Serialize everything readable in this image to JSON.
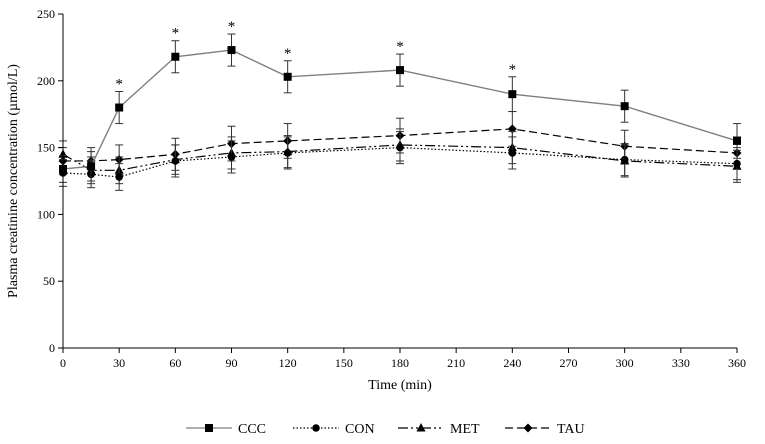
{
  "chart_data": {
    "type": "line",
    "title": "",
    "xlabel": "Time (min)",
    "ylabel": "Plasma creatinine concentration (µmol/L)",
    "xlim": [
      0,
      360
    ],
    "ylim": [
      0,
      250
    ],
    "x_ticks": [
      "0",
      "30",
      "60",
      "90",
      "120",
      "150",
      "180",
      "210",
      "240",
      "270",
      "300",
      "330",
      "360"
    ],
    "y_ticks": [
      "0",
      "50",
      "100",
      "150",
      "200",
      "250"
    ],
    "grid": false,
    "legend_position": "bottom",
    "significance_marker": "*",
    "series": [
      {
        "name": "CCC",
        "marker": "square",
        "line_style": "solid",
        "x": [
          0,
          15,
          30,
          60,
          90,
          120,
          180,
          240,
          300,
          360
        ],
        "y": [
          134,
          136,
          180,
          218,
          223,
          203,
          208,
          190,
          181,
          155
        ],
        "err": [
          10,
          11,
          12,
          12,
          12,
          12,
          12,
          13,
          12,
          13
        ],
        "significant": [
          false,
          false,
          true,
          true,
          true,
          true,
          true,
          true,
          false,
          false
        ]
      },
      {
        "name": "CON",
        "marker": "circle",
        "line_style": "dotted",
        "x": [
          0,
          15,
          30,
          60,
          90,
          120,
          180,
          240,
          300,
          360
        ],
        "y": [
          131,
          130,
          128,
          140,
          143,
          146,
          150,
          146,
          141,
          138
        ],
        "err": [
          10,
          10,
          10,
          12,
          12,
          12,
          12,
          12,
          12,
          12
        ]
      },
      {
        "name": "MET",
        "marker": "triangle",
        "line_style": "dash-dot-dot",
        "x": [
          0,
          15,
          30,
          60,
          90,
          120,
          180,
          240,
          300,
          360
        ],
        "y": [
          145,
          133,
          133,
          141,
          146,
          147,
          152,
          150,
          140,
          136
        ],
        "err": [
          10,
          10,
          10,
          11,
          12,
          12,
          12,
          12,
          12,
          12
        ]
      },
      {
        "name": "TAU",
        "marker": "diamond",
        "line_style": "dashed",
        "x": [
          0,
          15,
          30,
          60,
          90,
          120,
          180,
          240,
          300,
          360
        ],
        "y": [
          140,
          140,
          141,
          145,
          153,
          155,
          159,
          164,
          151,
          146
        ],
        "err": [
          10,
          10,
          11,
          12,
          13,
          13,
          13,
          13,
          12,
          12
        ]
      }
    ]
  }
}
